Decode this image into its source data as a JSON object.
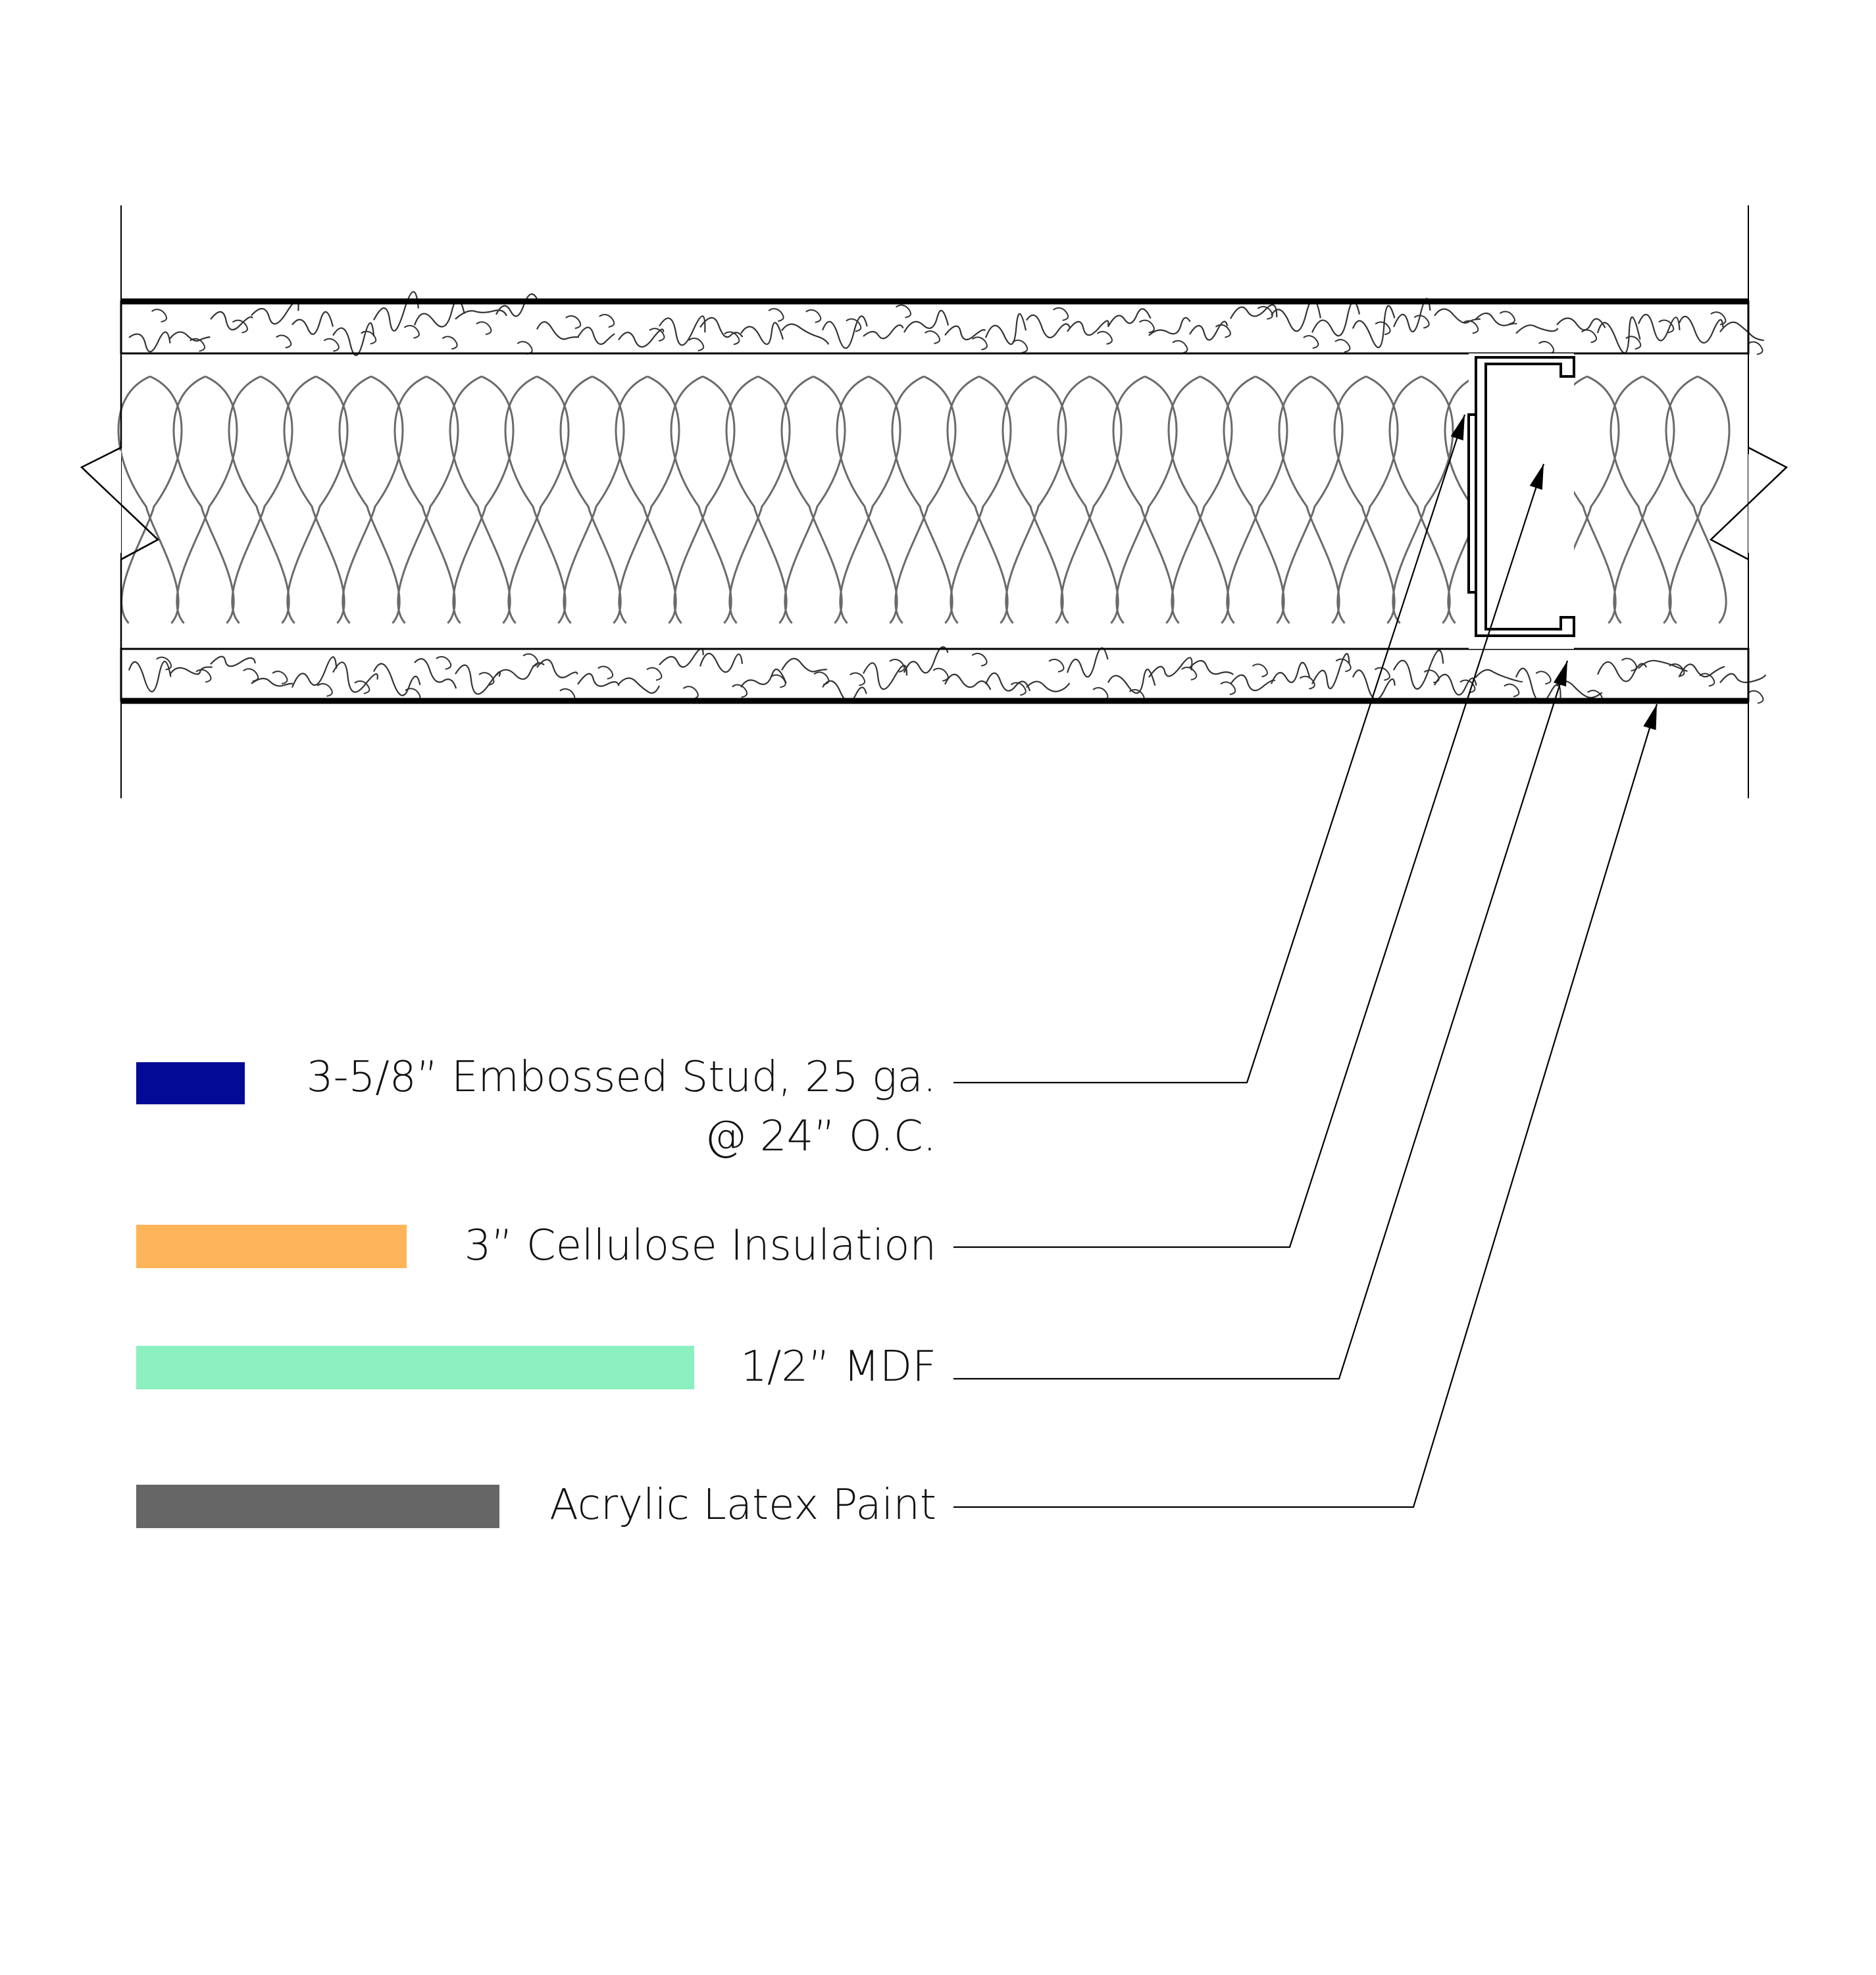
{
  "colors": {
    "stud": "#020A96",
    "insulation": "#FEB55A",
    "mdf": "#8BEFC0",
    "paint": "#666666",
    "line": "#000000",
    "batt": "#6a6a6a"
  },
  "legend": [
    {
      "key": "stud",
      "label_line1": "3-5/8” Embossed Stud, 25 ga.",
      "label_line2": "@ 24” O.C."
    },
    {
      "key": "insulation",
      "label_line1": "3” Cellulose Insulation"
    },
    {
      "key": "mdf",
      "label_line1": "1/2” MDF"
    },
    {
      "key": "paint",
      "label_line1": "Acrylic Latex Paint"
    }
  ]
}
